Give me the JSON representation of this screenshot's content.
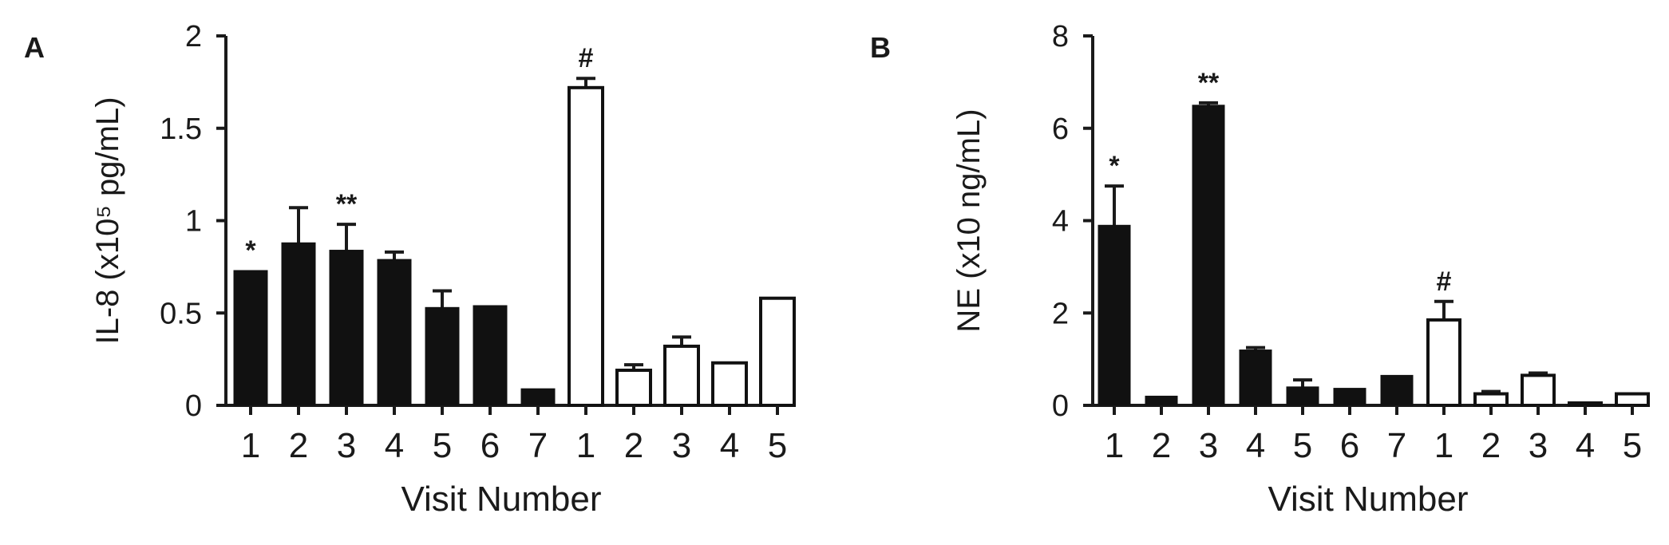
{
  "chart_data": [
    {
      "type": "bar",
      "panel_label": "A",
      "ylabel": "IL-8 (x10⁵ pg/mL)",
      "xlabel": "Visit Number",
      "ylim": [
        0,
        2
      ],
      "yticks": [
        {
          "value": 0,
          "label": "0"
        },
        {
          "value": 0.5,
          "label": "0.5"
        },
        {
          "value": 1,
          "label": "1"
        },
        {
          "value": 1.5,
          "label": "1.5"
        },
        {
          "value": 2,
          "label": "2"
        }
      ],
      "categories": [
        "1",
        "2",
        "3",
        "4",
        "5",
        "6",
        "7",
        "1",
        "2",
        "3",
        "4",
        "5"
      ],
      "values": [
        0.73,
        0.88,
        0.84,
        0.79,
        0.53,
        0.54,
        0.09,
        1.72,
        0.19,
        0.32,
        0.23,
        0.58
      ],
      "errors": [
        0.0,
        0.19,
        0.14,
        0.04,
        0.09,
        0.0,
        0.0,
        0.05,
        0.03,
        0.05,
        0.0,
        0.0
      ],
      "fills": [
        "black",
        "black",
        "black",
        "black",
        "black",
        "black",
        "black",
        "white",
        "white",
        "white",
        "white",
        "white"
      ],
      "annotations": [
        {
          "bar": 0,
          "text": "*"
        },
        {
          "bar": 2,
          "text": "**"
        },
        {
          "bar": 7,
          "text": "#"
        }
      ],
      "grid": false
    },
    {
      "type": "bar",
      "panel_label": "B",
      "ylabel": "NE (x10 ng/mL)",
      "xlabel": "Visit Number",
      "ylim": [
        0,
        8
      ],
      "yticks": [
        {
          "value": 0,
          "label": "0"
        },
        {
          "value": 2,
          "label": "2"
        },
        {
          "value": 4,
          "label": "4"
        },
        {
          "value": 6,
          "label": "6"
        },
        {
          "value": 8,
          "label": "8"
        }
      ],
      "categories": [
        "1",
        "2",
        "3",
        "4",
        "5",
        "6",
        "7",
        "1",
        "2",
        "3",
        "4",
        "5"
      ],
      "values": [
        3.9,
        0.2,
        6.5,
        1.2,
        0.4,
        0.37,
        0.65,
        1.85,
        0.25,
        0.65,
        0.0,
        0.25
      ],
      "errors": [
        0.85,
        0.0,
        0.05,
        0.05,
        0.15,
        0.0,
        0.0,
        0.4,
        0.05,
        0.05,
        0.0,
        0.0
      ],
      "fills": [
        "black",
        "black",
        "black",
        "black",
        "black",
        "black",
        "black",
        "white",
        "white",
        "white",
        "white",
        "white"
      ],
      "annotations": [
        {
          "bar": 0,
          "text": "*"
        },
        {
          "bar": 2,
          "text": "**"
        },
        {
          "bar": 7,
          "text": "#"
        }
      ],
      "grid": false
    }
  ]
}
